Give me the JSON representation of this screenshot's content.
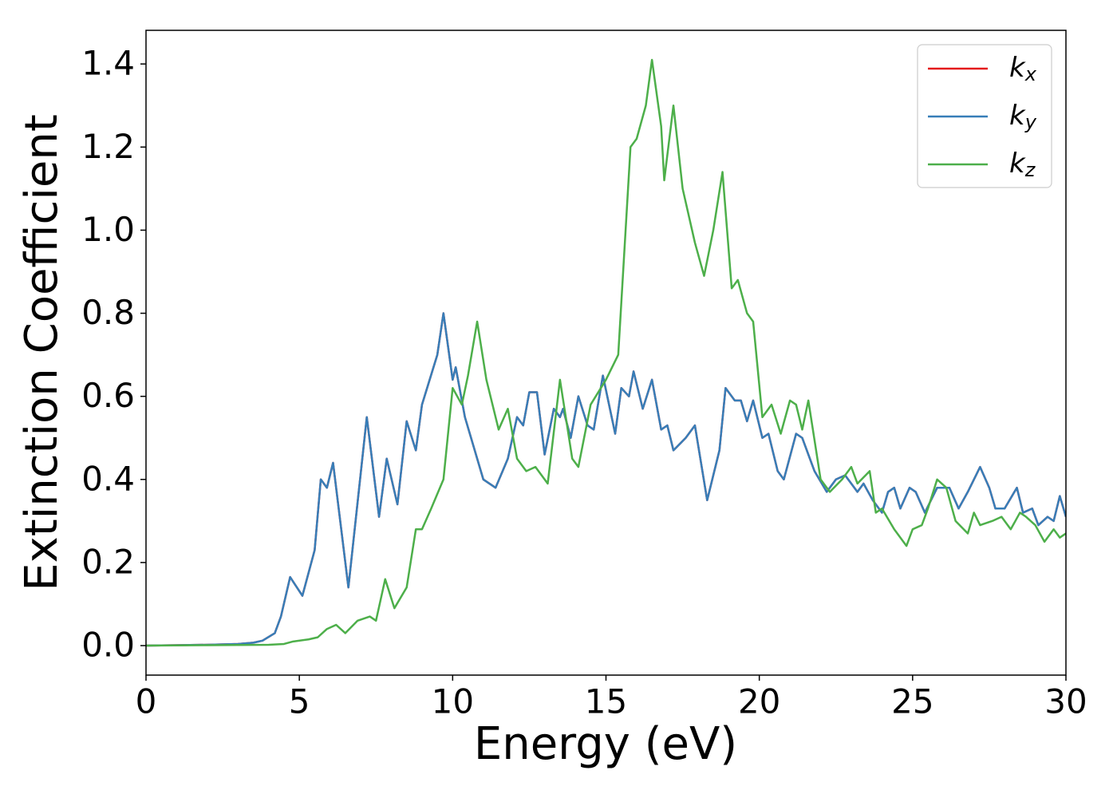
{
  "chart_data": {
    "type": "line",
    "xlabel": "Energy (eV)",
    "ylabel": "Extinction Coefficient",
    "xlim": [
      0,
      30
    ],
    "xticks": [
      0,
      5,
      10,
      15,
      20,
      25,
      30
    ],
    "ylim": [
      -0.071,
      1.481
    ],
    "yticks": [
      {
        "value": 0,
        "label": "0.0"
      },
      0.2,
      0.4,
      0.6,
      0.8,
      {
        "value": 1,
        "label": "1.0"
      },
      1.2,
      1.4
    ],
    "legend": "upper right",
    "series": [
      {
        "name": "kx",
        "color": "#e41a1c",
        "x": [
          0,
          1,
          2,
          3,
          3.5,
          3.8,
          4.2,
          4.4,
          4.7,
          5.1,
          5.5,
          5.7,
          5.9,
          6.1,
          6.6,
          7.2,
          7.6,
          7.85,
          8.2,
          8.5,
          8.8,
          9.0,
          9.5,
          9.7,
          10.0,
          10.1,
          10.4,
          11.0,
          11.4,
          11.8,
          12.1,
          12.3,
          12.5,
          12.75,
          13.0,
          13.3,
          13.5,
          13.6,
          13.85,
          14.1,
          14.4,
          14.6,
          14.9,
          15.3,
          15.5,
          15.75,
          15.9,
          16.2,
          16.5,
          16.8,
          17.0,
          17.2,
          17.6,
          17.9,
          18.3,
          18.7,
          18.9,
          19.2,
          19.4,
          19.6,
          19.8,
          20.1,
          20.3,
          20.6,
          20.8,
          21.2,
          21.4,
          21.8,
          22.2,
          22.5,
          22.8,
          23.2,
          23.4,
          23.7,
          24.0,
          24.2,
          24.4,
          24.6,
          24.9,
          25.1,
          25.4,
          25.8,
          26.2,
          26.5,
          26.8,
          27.2,
          27.5,
          27.7,
          28.0,
          28.4,
          28.6,
          28.9,
          29.1,
          29.4,
          29.6,
          29.8,
          30
        ],
        "values": [
          0,
          0.001,
          0.002,
          0.004,
          0.007,
          0.012,
          0.03,
          0.07,
          0.165,
          0.12,
          0.23,
          0.4,
          0.38,
          0.44,
          0.14,
          0.55,
          0.31,
          0.45,
          0.34,
          0.54,
          0.47,
          0.58,
          0.7,
          0.8,
          0.64,
          0.67,
          0.55,
          0.4,
          0.38,
          0.45,
          0.55,
          0.53,
          0.61,
          0.61,
          0.46,
          0.57,
          0.55,
          0.57,
          0.5,
          0.6,
          0.53,
          0.52,
          0.65,
          0.51,
          0.62,
          0.6,
          0.66,
          0.57,
          0.64,
          0.52,
          0.53,
          0.47,
          0.5,
          0.53,
          0.35,
          0.47,
          0.62,
          0.59,
          0.59,
          0.54,
          0.59,
          0.5,
          0.51,
          0.42,
          0.4,
          0.51,
          0.5,
          0.42,
          0.37,
          0.4,
          0.41,
          0.37,
          0.39,
          0.35,
          0.32,
          0.37,
          0.38,
          0.33,
          0.38,
          0.37,
          0.32,
          0.38,
          0.38,
          0.33,
          0.37,
          0.43,
          0.38,
          0.33,
          0.33,
          0.38,
          0.32,
          0.33,
          0.29,
          0.31,
          0.3,
          0.36,
          0.31
        ]
      },
      {
        "name": "ky",
        "color": "#377eb8",
        "x": [
          0,
          1,
          2,
          3,
          3.5,
          3.8,
          4.2,
          4.4,
          4.7,
          5.1,
          5.5,
          5.7,
          5.9,
          6.1,
          6.6,
          7.2,
          7.6,
          7.85,
          8.2,
          8.5,
          8.8,
          9.0,
          9.5,
          9.7,
          10.0,
          10.1,
          10.4,
          11.0,
          11.4,
          11.8,
          12.1,
          12.3,
          12.5,
          12.75,
          13.0,
          13.3,
          13.5,
          13.6,
          13.85,
          14.1,
          14.4,
          14.6,
          14.9,
          15.3,
          15.5,
          15.75,
          15.9,
          16.2,
          16.5,
          16.8,
          17.0,
          17.2,
          17.6,
          17.9,
          18.3,
          18.7,
          18.9,
          19.2,
          19.4,
          19.6,
          19.8,
          20.1,
          20.3,
          20.6,
          20.8,
          21.2,
          21.4,
          21.8,
          22.2,
          22.5,
          22.8,
          23.2,
          23.4,
          23.7,
          24.0,
          24.2,
          24.4,
          24.6,
          24.9,
          25.1,
          25.4,
          25.8,
          26.2,
          26.5,
          26.8,
          27.2,
          27.5,
          27.7,
          28.0,
          28.4,
          28.6,
          28.9,
          29.1,
          29.4,
          29.6,
          29.8,
          30
        ],
        "values": [
          0,
          0.001,
          0.002,
          0.004,
          0.007,
          0.012,
          0.03,
          0.07,
          0.165,
          0.12,
          0.23,
          0.4,
          0.38,
          0.44,
          0.14,
          0.55,
          0.31,
          0.45,
          0.34,
          0.54,
          0.47,
          0.58,
          0.7,
          0.8,
          0.64,
          0.67,
          0.55,
          0.4,
          0.38,
          0.45,
          0.55,
          0.53,
          0.61,
          0.61,
          0.46,
          0.57,
          0.55,
          0.57,
          0.5,
          0.6,
          0.53,
          0.52,
          0.65,
          0.51,
          0.62,
          0.6,
          0.66,
          0.57,
          0.64,
          0.52,
          0.53,
          0.47,
          0.5,
          0.53,
          0.35,
          0.47,
          0.62,
          0.59,
          0.59,
          0.54,
          0.59,
          0.5,
          0.51,
          0.42,
          0.4,
          0.51,
          0.5,
          0.42,
          0.37,
          0.4,
          0.41,
          0.37,
          0.39,
          0.35,
          0.32,
          0.37,
          0.38,
          0.33,
          0.38,
          0.37,
          0.32,
          0.38,
          0.38,
          0.33,
          0.37,
          0.43,
          0.38,
          0.33,
          0.33,
          0.38,
          0.32,
          0.33,
          0.29,
          0.31,
          0.3,
          0.36,
          0.31
        ]
      },
      {
        "name": "kz",
        "color": "#4daf4a",
        "x": [
          0,
          2,
          4,
          4.5,
          4.8,
          5.3,
          5.6,
          5.9,
          6.2,
          6.5,
          6.9,
          7.3,
          7.5,
          7.8,
          8.1,
          8.5,
          8.8,
          9.0,
          9.3,
          9.7,
          10.0,
          10.3,
          10.5,
          10.8,
          11.1,
          11.5,
          11.8,
          12.1,
          12.4,
          12.7,
          13.1,
          13.5,
          13.9,
          14.1,
          14.5,
          15.0,
          15.4,
          15.8,
          16.0,
          16.3,
          16.5,
          16.8,
          16.9,
          17.2,
          17.5,
          17.9,
          18.2,
          18.5,
          18.8,
          19.1,
          19.3,
          19.6,
          19.8,
          20.1,
          20.4,
          20.7,
          21.0,
          21.2,
          21.4,
          21.6,
          22.0,
          22.3,
          22.7,
          23.0,
          23.2,
          23.6,
          23.8,
          24.0,
          24.4,
          24.8,
          25.0,
          25.3,
          25.5,
          25.8,
          26.1,
          26.4,
          26.8,
          27.0,
          27.2,
          27.6,
          27.9,
          28.2,
          28.5,
          28.7,
          29.0,
          29.3,
          29.6,
          29.8,
          30
        ],
        "values": [
          0,
          0.001,
          0.002,
          0.004,
          0.01,
          0.015,
          0.02,
          0.04,
          0.05,
          0.03,
          0.06,
          0.07,
          0.06,
          0.16,
          0.09,
          0.14,
          0.28,
          0.28,
          0.33,
          0.4,
          0.62,
          0.58,
          0.65,
          0.78,
          0.64,
          0.52,
          0.57,
          0.45,
          0.42,
          0.43,
          0.39,
          0.64,
          0.45,
          0.43,
          0.58,
          0.64,
          0.7,
          1.2,
          1.22,
          1.3,
          1.41,
          1.25,
          1.12,
          1.3,
          1.1,
          0.97,
          0.89,
          1.0,
          1.14,
          0.86,
          0.88,
          0.8,
          0.78,
          0.55,
          0.58,
          0.51,
          0.59,
          0.58,
          0.52,
          0.59,
          0.4,
          0.37,
          0.4,
          0.43,
          0.39,
          0.42,
          0.32,
          0.33,
          0.28,
          0.24,
          0.28,
          0.29,
          0.33,
          0.4,
          0.38,
          0.3,
          0.27,
          0.32,
          0.29,
          0.3,
          0.31,
          0.28,
          0.32,
          0.31,
          0.29,
          0.25,
          0.28,
          0.26,
          0.27
        ]
      }
    ]
  }
}
